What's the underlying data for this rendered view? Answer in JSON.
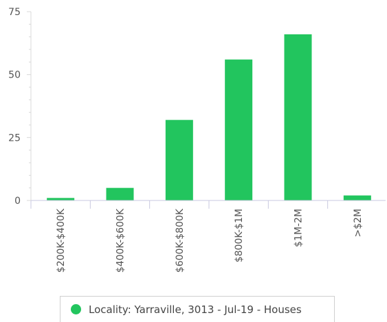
{
  "chart_data": {
    "type": "bar",
    "categories": [
      "$200K-$400K",
      "$400K-$600K",
      "$600K-$800K",
      "$800K-$1M",
      "$1M-2M",
      ">$2M"
    ],
    "series": [
      {
        "name": "Locality: Yarraville, 3013 - Jul-19 - Houses",
        "values": [
          1,
          5,
          32,
          56,
          66,
          2
        ]
      }
    ],
    "ylim": [
      0,
      75
    ],
    "yticks": [
      0,
      25,
      50,
      75
    ],
    "grid": false,
    "legend_position": "bottom",
    "bar_color": "#22c55e"
  },
  "legend": {
    "label": "Locality: Yarraville, 3013 - Jul-19 - Houses",
    "color": "#22c55e"
  }
}
